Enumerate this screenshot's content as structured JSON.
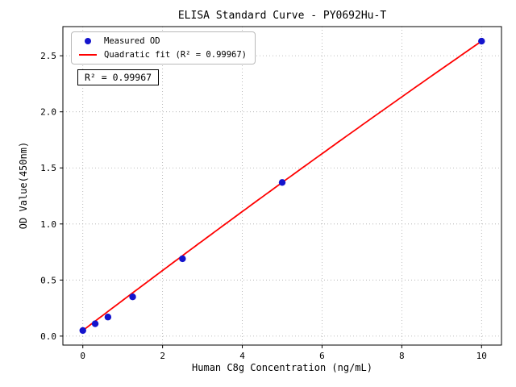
{
  "chart_data": {
    "type": "scatter",
    "title": "ELISA Standard Curve - PY0692Hu-T",
    "xlabel": "Human C8g Concentration (ng/mL)",
    "ylabel": "OD Value(450nm)",
    "xlim": [
      -0.5,
      10.5
    ],
    "ylim": [
      -0.08,
      2.76
    ],
    "xticks": [
      0,
      2,
      4,
      6,
      8,
      10
    ],
    "xtick_labels": [
      "0",
      "2",
      "4",
      "6",
      "8",
      "10"
    ],
    "yticks": [
      0,
      0.5,
      1,
      1.5,
      2,
      2.5
    ],
    "ytick_labels": [
      "0.0",
      "0.5",
      "1.0",
      "1.5",
      "2.0",
      "2.5"
    ],
    "grid": true,
    "grid_style": "dotted",
    "annotation": "R² = 0.99967",
    "r_squared": 0.99967,
    "legend": {
      "position": "upper-left",
      "entries": [
        {
          "label": "Measured OD",
          "marker": "dot",
          "color": "#1414cd"
        },
        {
          "label": "Quadratic fit (R² = 0.99967)",
          "marker": "line",
          "color": "#ff0000"
        }
      ]
    },
    "series": [
      {
        "name": "Measured OD",
        "type": "scatter",
        "color": "#1414cd",
        "x": [
          0,
          0.31,
          0.63,
          1.25,
          2.5,
          5,
          10
        ],
        "y": [
          0.05,
          0.11,
          0.17,
          0.35,
          0.69,
          1.37,
          2.63
        ]
      },
      {
        "name": "Quadratic fit",
        "type": "line",
        "color": "#ff0000",
        "x_range": [
          0,
          10
        ],
        "fit": {
          "intercept": 0.05,
          "linear": 0.27,
          "quadratic": -0.0012
        },
        "r_squared": 0.99967
      }
    ]
  }
}
